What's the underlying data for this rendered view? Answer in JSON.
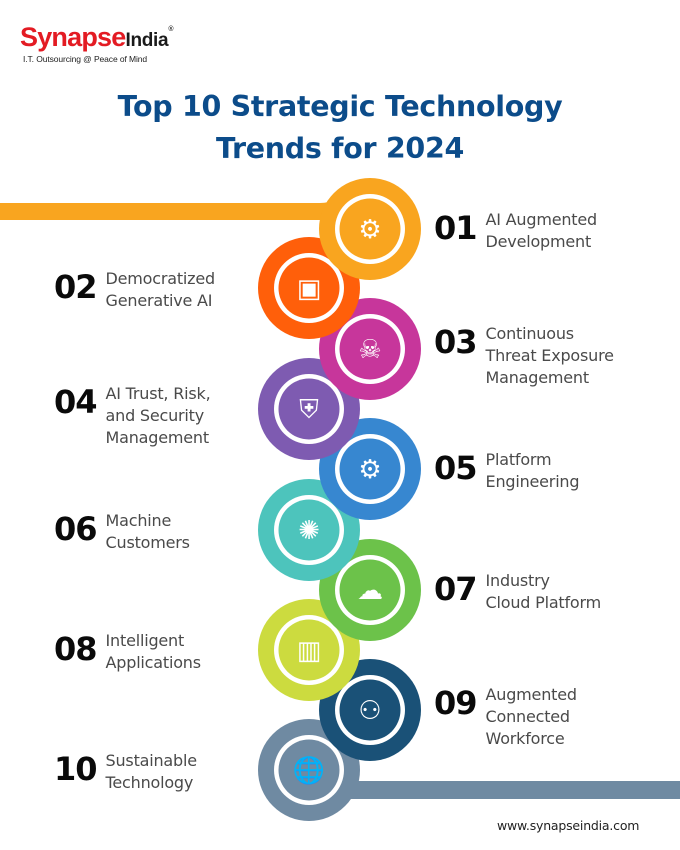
{
  "brand": {
    "name_part1": "Synapse",
    "name_part2": "India",
    "registered_mark": "®",
    "tagline": "I.T. Outsourcing @ Peace of Mind"
  },
  "title": {
    "line1": "Top 10 Strategic Technology",
    "line2": "Trends for 2024"
  },
  "trends": [
    {
      "number": "01",
      "label": "AI Augmented\nDevelopment",
      "color": "#F9A51F",
      "icon": "gear-chip-icon",
      "side": "right"
    },
    {
      "number": "02",
      "label": "Democratized\nGenerative AI",
      "color": "#FF5F0A",
      "icon": "generative-media-icon",
      "side": "left"
    },
    {
      "number": "03",
      "label": "Continuous\nThreat Exposure\nManagement",
      "color": "#C7369B",
      "icon": "hacker-icon",
      "side": "right"
    },
    {
      "number": "04",
      "label": "AI Trust, Risk,\nand Security\nManagement",
      "color": "#7E5BB1",
      "icon": "shield-handshake-icon",
      "side": "left"
    },
    {
      "number": "05",
      "label": "Platform\nEngineering",
      "color": "#3787D0",
      "icon": "window-gear-icon",
      "side": "right"
    },
    {
      "number": "06",
      "label": "Machine\nCustomers",
      "color": "#4DC4BC",
      "icon": "brain-circuit-icon",
      "side": "left"
    },
    {
      "number": "07",
      "label": "Industry\nCloud Platform",
      "color": "#6CC24A",
      "icon": "cloud-gears-icon",
      "side": "right"
    },
    {
      "number": "08",
      "label": "Intelligent\nApplications",
      "color": "#CCDB3F",
      "icon": "mobile-analytics-icon",
      "side": "left"
    },
    {
      "number": "09",
      "label": "Augmented\nConnected\nWorkforce",
      "color": "#1A5177",
      "icon": "team-gears-icon",
      "side": "right"
    },
    {
      "number": "10",
      "label": "Sustainable\nTechnology",
      "color": "#6F8AA2",
      "icon": "globe-hand-icon",
      "side": "left"
    }
  ],
  "footer": {
    "url": "www.synapseindia.com"
  },
  "colors": {
    "title": "#0C4C8A",
    "brand_red": "#E31B23",
    "top_bar": "#F9A51F",
    "bottom_bar": "#6F8AA2"
  }
}
